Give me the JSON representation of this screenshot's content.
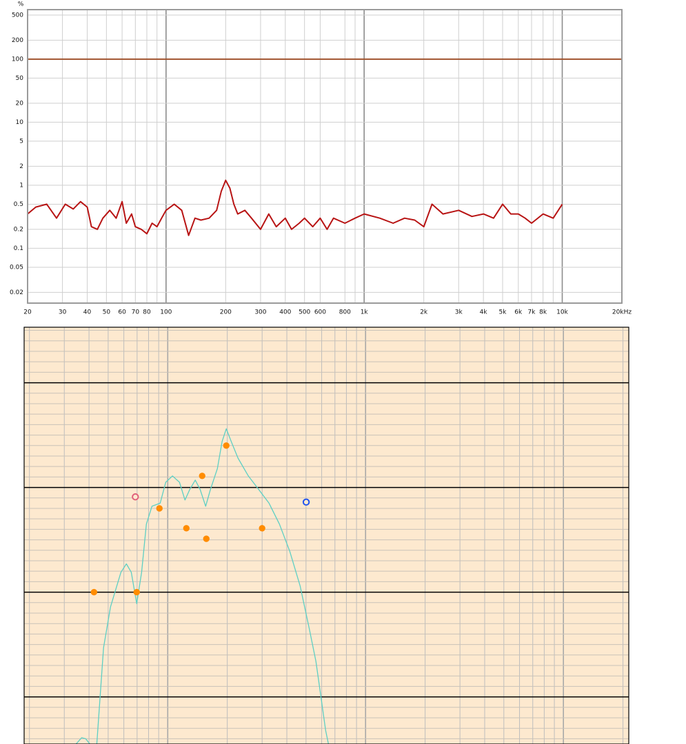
{
  "chart_data": [
    {
      "type": "line",
      "y_label": "%",
      "xlog": true,
      "ylog": true,
      "background": "#ffffff",
      "xlim": [
        20,
        20000
      ],
      "ylim": [
        0.0135,
        610
      ],
      "xticks": [
        20,
        30,
        40,
        50,
        60,
        70,
        80,
        100,
        200,
        300,
        400,
        500,
        600,
        800,
        {
          "value": 1000,
          "label": "1k"
        },
        {
          "value": 2000,
          "label": "2k"
        },
        {
          "value": 3000,
          "label": "3k"
        },
        {
          "value": 4000,
          "label": "4k"
        },
        {
          "value": 5000,
          "label": "5k"
        },
        {
          "value": 6000,
          "label": "6k"
        },
        {
          "value": 7000,
          "label": "7k"
        },
        {
          "value": 8000,
          "label": "8k"
        },
        {
          "value": 10000,
          "label": "10k"
        },
        {
          "value": 20000,
          "label": "20kHz"
        }
      ],
      "xminorticks": [
        90,
        900,
        9000
      ],
      "yticks": [
        500,
        200,
        100,
        50,
        20,
        10,
        5,
        2,
        1,
        0.5,
        0.2,
        0.1,
        0.05,
        0.02
      ],
      "series": [
        {
          "type": "line",
          "color": "#a0522d",
          "x": [
            20,
            20000
          ],
          "values": [
            100,
            100
          ]
        },
        {
          "type": "line",
          "color": "#b81414",
          "x": [
            20,
            22,
            25,
            28,
            31,
            34,
            37,
            40,
            42,
            45,
            48,
            52,
            56,
            60,
            63,
            67,
            70,
            75,
            80,
            85,
            90,
            95,
            100,
            110,
            120,
            130,
            140,
            150,
            165,
            180,
            190,
            200,
            210,
            220,
            230,
            250,
            270,
            300,
            330,
            360,
            400,
            430,
            470,
            500,
            550,
            600,
            650,
            700,
            800,
            900,
            1000,
            1200,
            1400,
            1600,
            1800,
            2000,
            2200,
            2500,
            3000,
            3500,
            4000,
            4500,
            5000,
            5500,
            6000,
            6500,
            7000,
            8000,
            9000,
            10000
          ],
          "values": [
            0.35,
            0.45,
            0.5,
            0.3,
            0.5,
            0.42,
            0.55,
            0.45,
            0.22,
            0.2,
            0.3,
            0.4,
            0.3,
            0.55,
            0.25,
            0.35,
            0.22,
            0.2,
            0.17,
            0.25,
            0.22,
            0.3,
            0.4,
            0.5,
            0.4,
            0.16,
            0.3,
            0.28,
            0.3,
            0.4,
            0.8,
            1.2,
            0.9,
            0.5,
            0.35,
            0.4,
            0.3,
            0.2,
            0.35,
            0.22,
            0.3,
            0.2,
            0.25,
            0.3,
            0.22,
            0.3,
            0.2,
            0.3,
            0.25,
            0.3,
            0.35,
            0.3,
            0.25,
            0.3,
            0.28,
            0.22,
            0.5,
            0.35,
            0.4,
            0.32,
            0.35,
            0.3,
            0.5,
            0.35,
            0.35,
            0.3,
            0.25,
            0.35,
            0.3,
            0.5
          ]
        }
      ]
    },
    {
      "type": "line",
      "xlog": true,
      "ylog": false,
      "tick_labels": false,
      "background": "#fde9cf",
      "xlim": [
        18.8,
        21400
      ],
      "ylim": [
        -34.5,
        5.3
      ],
      "xticks": [
        20,
        30,
        40,
        50,
        60,
        70,
        80,
        90,
        100,
        200,
        300,
        400,
        500,
        600,
        700,
        800,
        900,
        1000,
        2000,
        3000,
        4000,
        5000,
        6000,
        7000,
        8000,
        9000,
        10000,
        20000
      ],
      "yticks": [
        5,
        4,
        3,
        2,
        1,
        0,
        -1,
        -2,
        -3,
        -4,
        -5,
        -6,
        -7,
        -8,
        -9,
        -10,
        -11,
        -12,
        -13,
        -14,
        -15,
        -16,
        -17,
        -18,
        -19,
        -20,
        -21,
        -22,
        -23,
        -24,
        -25,
        -26,
        -27,
        -28,
        -29,
        -30,
        -31,
        -32,
        -33,
        -34
      ],
      "series": [
        {
          "type": "line",
          "color": "#5ccfc4",
          "x": [
            34.4,
            36.7,
            38.5,
            40.4,
            null,
            43.8,
            47.4,
            51.4,
            58.0,
            61.8,
            65.4,
            69.7,
            73.8,
            78.0,
            83.2,
            91.6,
            97.7,
            105.7,
            114.6,
            122.2,
            129.2,
            137.8,
            145.8,
            155.5,
            164.4,
            178.2,
            188.4,
            197.7,
            209.3,
            226.6,
            255.6,
            288.4,
            325,
            367,
            414,
            467,
            518,
            561,
            594,
            628,
            649
          ],
          "values": [
            -34.5,
            -33.9,
            -34.0,
            -34.5,
            null,
            -34.5,
            -25.3,
            -21.4,
            -18.1,
            -17.3,
            -18.1,
            -21.1,
            -18.1,
            -13.5,
            -11.8,
            -11.5,
            -9.5,
            -8.9,
            -9.5,
            -11.2,
            -10.2,
            -9.3,
            -10.2,
            -11.8,
            -10.2,
            -8.2,
            -5.6,
            -4.4,
            -5.6,
            -7.2,
            -8.9,
            -10.2,
            -11.5,
            -13.5,
            -16.1,
            -19.4,
            -23.4,
            -26.6,
            -29.9,
            -33.2,
            -34.5
          ]
        },
        {
          "type": "scatter",
          "color": "#ff8c00",
          "x": [
            42.4,
            69.7,
            90.8,
            124.2,
            149.3,
            156.7,
            197.7,
            300
          ],
          "values": [
            -20.0,
            -20.0,
            -12.0,
            -13.9,
            -8.9,
            -14.9,
            -6.0,
            -13.9
          ]
        },
        {
          "type": "scatter",
          "color": "#e0607a",
          "hollow": true,
          "x": [
            68.6
          ],
          "values": [
            -10.9
          ]
        },
        {
          "type": "scatter",
          "color": "#2255ee",
          "hollow": true,
          "x": [
            501
          ],
          "values": [
            -11.4
          ]
        }
      ]
    }
  ]
}
